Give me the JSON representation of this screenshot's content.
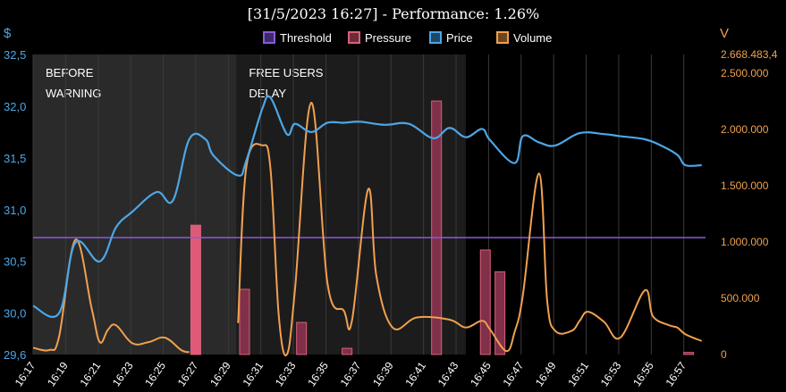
{
  "chart_data": {
    "type": "line",
    "title": "[31/5/2023 16:27] - Performance: 1.26%",
    "left_axis": {
      "label": "$",
      "ylim": [
        29.6,
        32.5
      ],
      "ticks": [
        "29,6",
        "30,0",
        "30,5",
        "31,0",
        "31,5",
        "32,0",
        "32,5"
      ],
      "tick_values": [
        29.6,
        30.0,
        30.5,
        31.0,
        31.5,
        32.0,
        32.5
      ]
    },
    "right_axis": {
      "label": "V",
      "ylim": [
        0,
        2668483.4
      ],
      "ticks": [
        "0",
        "500.000",
        "1.000.000",
        "1.500.000",
        "2.000.000",
        "2.500.000",
        "2.668.483,4"
      ],
      "tick_values": [
        0,
        500000,
        1000000,
        1500000,
        2000000,
        2500000,
        2668483.4
      ]
    },
    "x_ticks": [
      "16:17",
      "16:19",
      "16:21",
      "16:23",
      "16:25",
      "16:27",
      "16:29",
      "16:31",
      "16:33",
      "16:35",
      "16:37",
      "16:39",
      "16:41",
      "16:43",
      "16:45",
      "16:47",
      "16:49",
      "16:51",
      "16:53",
      "16:55",
      "16:57"
    ],
    "x_range": [
      0,
      41.5
    ],
    "bands": [
      {
        "label_lines": [
          "BEFORE",
          "WARNING"
        ],
        "from": 0,
        "to": 12.5,
        "color": "#2a2a2a"
      },
      {
        "label_lines": [
          "FREE USERS",
          "DELAY"
        ],
        "from": 12.5,
        "to": 26.6,
        "color": "#1c1c1c"
      }
    ],
    "legend": [
      {
        "name": "Threshold",
        "color": "#8a5cd6",
        "fill": "#3d2a66"
      },
      {
        "name": "Pressure",
        "color": "#d9607a",
        "fill": "#6b2c3a"
      },
      {
        "name": "Price",
        "color": "#4da6e6",
        "fill": "#1f4866"
      },
      {
        "name": "Volume",
        "color": "#f0a050",
        "fill": "#6b4520"
      }
    ],
    "threshold": {
      "name": "Threshold",
      "axis": "left",
      "value": 30.73
    },
    "pressure": {
      "name": "Pressure",
      "axis": "left",
      "bars": [
        {
          "x": 10,
          "value": 30.85,
          "highlight": true
        },
        {
          "x": 13,
          "value": 30.23
        },
        {
          "x": 16.5,
          "value": 29.91
        },
        {
          "x": 19.3,
          "value": 29.66
        },
        {
          "x": 24.8,
          "value": 32.05
        },
        {
          "x": 27.8,
          "value": 30.61
        },
        {
          "x": 28.7,
          "value": 30.4
        },
        {
          "x": 40.3,
          "value": 29.62
        }
      ]
    },
    "price": {
      "name": "Price",
      "axis": "left",
      "points": [
        [
          0,
          30.07
        ],
        [
          1.6,
          30.0
        ],
        [
          2.6,
          30.68
        ],
        [
          4.1,
          30.5
        ],
        [
          5.1,
          30.83
        ],
        [
          6.1,
          30.98
        ],
        [
          7.6,
          31.17
        ],
        [
          8.6,
          31.09
        ],
        [
          9.6,
          31.68
        ],
        [
          10.6,
          31.68
        ],
        [
          11.1,
          31.52
        ],
        [
          12.6,
          31.33
        ],
        [
          13.1,
          31.47
        ],
        [
          14.1,
          31.98
        ],
        [
          14.6,
          32.08
        ],
        [
          15.6,
          31.73
        ],
        [
          16.1,
          31.83
        ],
        [
          17.1,
          31.75
        ],
        [
          18.1,
          31.84
        ],
        [
          19.1,
          31.84
        ],
        [
          20.1,
          31.85
        ],
        [
          21.6,
          31.82
        ],
        [
          23.1,
          31.83
        ],
        [
          24.6,
          31.69
        ],
        [
          25.6,
          31.79
        ],
        [
          26.6,
          31.7
        ],
        [
          27.6,
          31.78
        ],
        [
          28.1,
          31.67
        ],
        [
          29.6,
          31.45
        ],
        [
          30.1,
          31.71
        ],
        [
          31.1,
          31.65
        ],
        [
          32.1,
          31.62
        ],
        [
          33.6,
          31.74
        ],
        [
          35.1,
          31.73
        ],
        [
          36.1,
          31.71
        ],
        [
          37.6,
          31.68
        ],
        [
          38.6,
          31.62
        ],
        [
          39.6,
          31.53
        ],
        [
          40.1,
          31.43
        ],
        [
          41.1,
          31.43
        ]
      ]
    },
    "volume": {
      "name": "Volume",
      "axis": "right",
      "segments": [
        [
          [
            0,
            60000
          ],
          [
            1,
            40000
          ],
          [
            1.6,
            160000
          ],
          [
            2.6,
            1020000
          ],
          [
            3.6,
            410000
          ],
          [
            4.1,
            110000
          ],
          [
            4.6,
            220000
          ],
          [
            5.1,
            260000
          ],
          [
            6.1,
            100000
          ],
          [
            7.1,
            110000
          ],
          [
            8.1,
            150000
          ],
          [
            9.1,
            40000
          ],
          [
            9.6,
            20000
          ]
        ],
        [
          [
            12.6,
            280000
          ],
          [
            13.1,
            1660000
          ],
          [
            14.1,
            1860000
          ],
          [
            14.6,
            1640000
          ],
          [
            15.1,
            350000
          ],
          [
            15.6,
            0
          ],
          [
            16.1,
            580000
          ],
          [
            17.1,
            2240000
          ],
          [
            18.1,
            630000
          ],
          [
            19.1,
            390000
          ],
          [
            19.6,
            300000
          ],
          [
            20.6,
            1470000
          ],
          [
            21.1,
            700000
          ],
          [
            22.1,
            240000
          ],
          [
            23.6,
            330000
          ],
          [
            25.6,
            310000
          ],
          [
            26.6,
            240000
          ],
          [
            27.6,
            300000
          ],
          [
            28.1,
            220000
          ],
          [
            29.1,
            30000
          ],
          [
            29.6,
            200000
          ],
          [
            30.1,
            520000
          ],
          [
            31.1,
            1610000
          ],
          [
            31.6,
            480000
          ],
          [
            32.1,
            210000
          ],
          [
            33.1,
            210000
          ],
          [
            33.6,
            300000
          ],
          [
            34.1,
            380000
          ],
          [
            35.1,
            290000
          ],
          [
            36.1,
            150000
          ],
          [
            37.6,
            570000
          ],
          [
            38.1,
            340000
          ],
          [
            39.1,
            260000
          ],
          [
            39.6,
            240000
          ],
          [
            40.1,
            180000
          ],
          [
            41.1,
            120000
          ]
        ]
      ]
    }
  }
}
